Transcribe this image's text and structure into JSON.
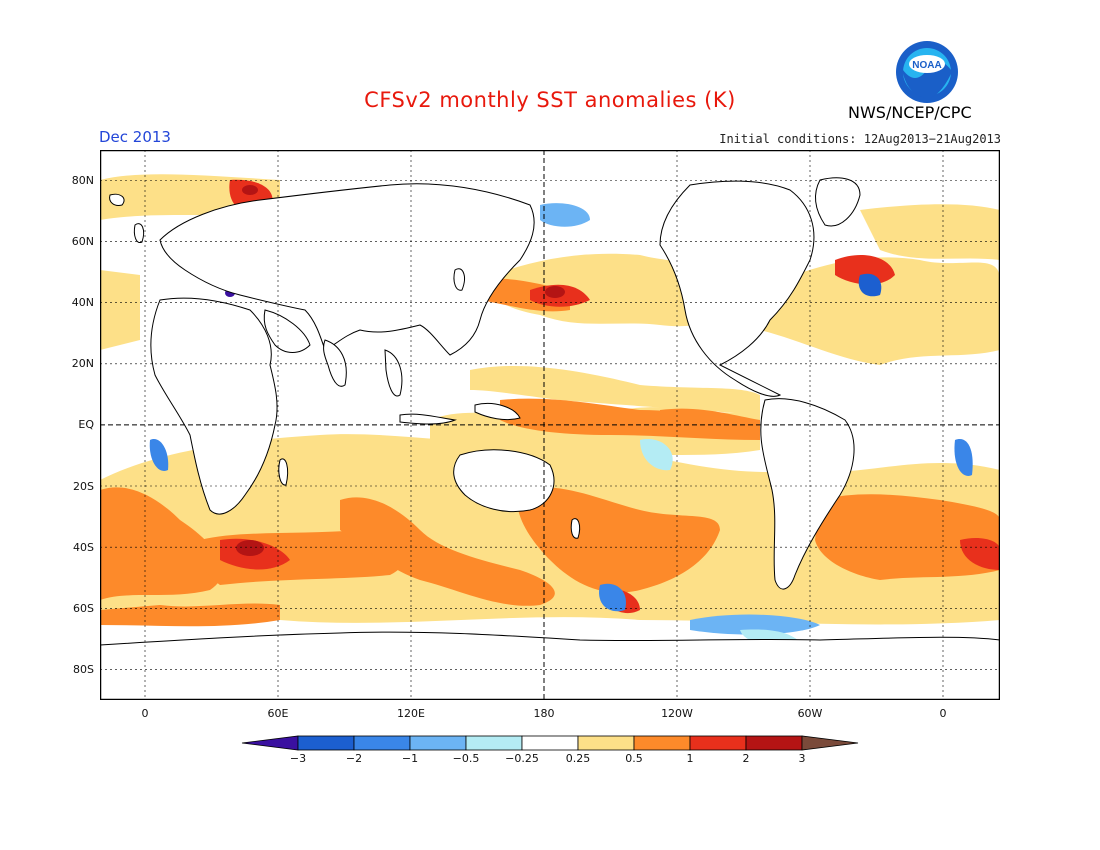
{
  "title": "CFSv2 monthly SST anomalies (K)",
  "agency": "NWS/NCEP/CPC",
  "logo_text": "NOAA",
  "forecast_month": "Dec 2013",
  "initial_conditions": "Initial conditions: 12Aug2013−21Aug2013",
  "lat_labels": [
    "80N",
    "60N",
    "40N",
    "20N",
    "EQ",
    "20S",
    "40S",
    "60S",
    "80S"
  ],
  "lon_labels": [
    "0",
    "60E",
    "120E",
    "180",
    "120W",
    "60W",
    "0"
  ],
  "colorbar": {
    "labels": [
      "−3",
      "−2",
      "−1",
      "−0.5",
      "−0.25",
      "0.25",
      "0.5",
      "1",
      "2",
      "3"
    ],
    "colors": [
      "#3a10a0",
      "#1c5fd0",
      "#3a86e8",
      "#6cb4f4",
      "#b4ecf4",
      "#ffffff",
      "#fde088",
      "#fd8a2a",
      "#e8301c",
      "#b41414",
      "#7a4a3a"
    ]
  },
  "colors": {
    "title": "#e8180c",
    "month": "#2346d8"
  }
}
